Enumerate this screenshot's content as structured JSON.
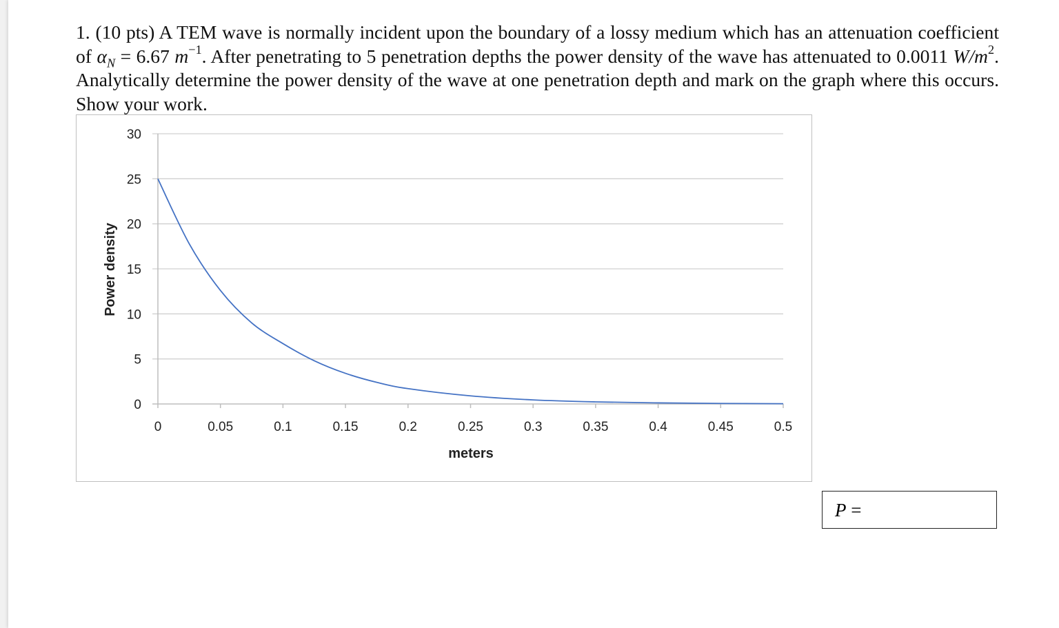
{
  "question": {
    "number": "1.",
    "points": "(10 pts)",
    "text_a": "A TEM wave is normally incident upon the boundary of a lossy medium which has an attenuation coefficient of",
    "alpha_symbol": "α",
    "alpha_sub": "N",
    "alpha_eq": "= 6.67",
    "alpha_unit": "m",
    "alpha_exp": "−1",
    "text_b": ". After penetrating to 5 penetration depths the power density of the wave has attenuated to",
    "power_value": "0.0011",
    "power_unit": "W/m",
    "power_exp": "2",
    "text_c": ". Analytically determine the power density of the wave at one penetration depth and mark on the graph where this occurs. Show your work."
  },
  "answer": {
    "var": "P",
    "eq": "="
  },
  "chart_data": {
    "type": "line",
    "xlabel": "meters",
    "ylabel": "Power density",
    "xlim": [
      0,
      0.5
    ],
    "ylim": [
      0,
      30
    ],
    "x_ticks": [
      "0",
      "0.05",
      "0.1",
      "0.15",
      "0.2",
      "0.25",
      "0.3",
      "0.35",
      "0.4",
      "0.45",
      "0.5"
    ],
    "y_ticks": [
      "0",
      "5",
      "10",
      "15",
      "20",
      "25",
      "30"
    ],
    "grid": "horizontal",
    "line_color": "#4472C4",
    "series": [
      {
        "x": [
          0,
          0.025,
          0.05,
          0.075,
          0.1,
          0.125,
          0.15,
          0.175,
          0.2,
          0.25,
          0.3,
          0.35,
          0.4,
          0.45,
          0.5
        ],
        "y": [
          25,
          17.8,
          12.6,
          9.0,
          6.7,
          4.8,
          3.4,
          2.4,
          1.7,
          0.9,
          0.45,
          0.23,
          0.12,
          0.06,
          0.03
        ]
      }
    ]
  }
}
